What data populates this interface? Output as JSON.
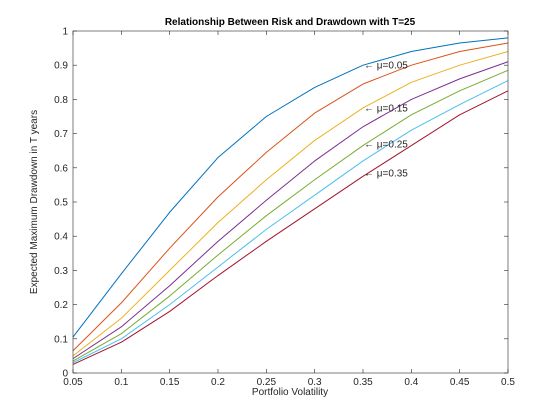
{
  "chart_data": {
    "type": "line",
    "title": "Relationship Between Risk and Drawdown with T=25",
    "xlabel": "Portfolio Volatility",
    "ylabel": "Expected Maximum Drawdown in T years",
    "xlim": [
      0.05,
      0.5
    ],
    "ylim": [
      0,
      1
    ],
    "x": [
      0.05,
      0.1,
      0.15,
      0.2,
      0.25,
      0.3,
      0.35,
      0.4,
      0.45,
      0.5
    ],
    "x_tick_labels": [
      "0.05",
      "0.1",
      "0.15",
      "0.2",
      "0.25",
      "0.3",
      "0.35",
      "0.4",
      "0.45",
      "0.5"
    ],
    "y_ticks": [
      0,
      0.1,
      0.2,
      0.3,
      0.4,
      0.5,
      0.6,
      0.7,
      0.8,
      0.9,
      1
    ],
    "y_tick_labels": [
      "0",
      "0.1",
      "0.2",
      "0.3",
      "0.4",
      "0.5",
      "0.6",
      "0.7",
      "0.8",
      "0.9",
      "1"
    ],
    "grid": false,
    "series": [
      {
        "color": "#0072BD",
        "values": [
          0.105,
          0.29,
          0.47,
          0.63,
          0.75,
          0.835,
          0.9,
          0.94,
          0.965,
          0.98
        ]
      },
      {
        "color": "#D95319",
        "values": [
          0.065,
          0.205,
          0.365,
          0.515,
          0.645,
          0.76,
          0.845,
          0.9,
          0.94,
          0.965
        ]
      },
      {
        "color": "#EDB120",
        "values": [
          0.05,
          0.16,
          0.3,
          0.44,
          0.565,
          0.68,
          0.775,
          0.85,
          0.9,
          0.94
        ]
      },
      {
        "color": "#7E2F8E",
        "values": [
          0.042,
          0.135,
          0.255,
          0.385,
          0.505,
          0.62,
          0.72,
          0.8,
          0.86,
          0.91
        ]
      },
      {
        "color": "#77AC30",
        "values": [
          0.035,
          0.115,
          0.225,
          0.345,
          0.46,
          0.565,
          0.665,
          0.755,
          0.825,
          0.885
        ]
      },
      {
        "color": "#4DBEEE",
        "values": [
          0.03,
          0.1,
          0.2,
          0.31,
          0.42,
          0.52,
          0.62,
          0.71,
          0.785,
          0.855
        ]
      },
      {
        "color": "#A2142F",
        "values": [
          0.025,
          0.09,
          0.18,
          0.285,
          0.385,
          0.48,
          0.575,
          0.665,
          0.755,
          0.825
        ]
      }
    ],
    "annotations": [
      {
        "text": "← μ=0.05",
        "x": 0.35,
        "y": 0.9
      },
      {
        "text": "← μ=0.15",
        "x": 0.35,
        "y": 0.775
      },
      {
        "text": "← μ=0.25",
        "x": 0.35,
        "y": 0.67
      },
      {
        "text": "← μ=0.35",
        "x": 0.35,
        "y": 0.585
      }
    ]
  }
}
